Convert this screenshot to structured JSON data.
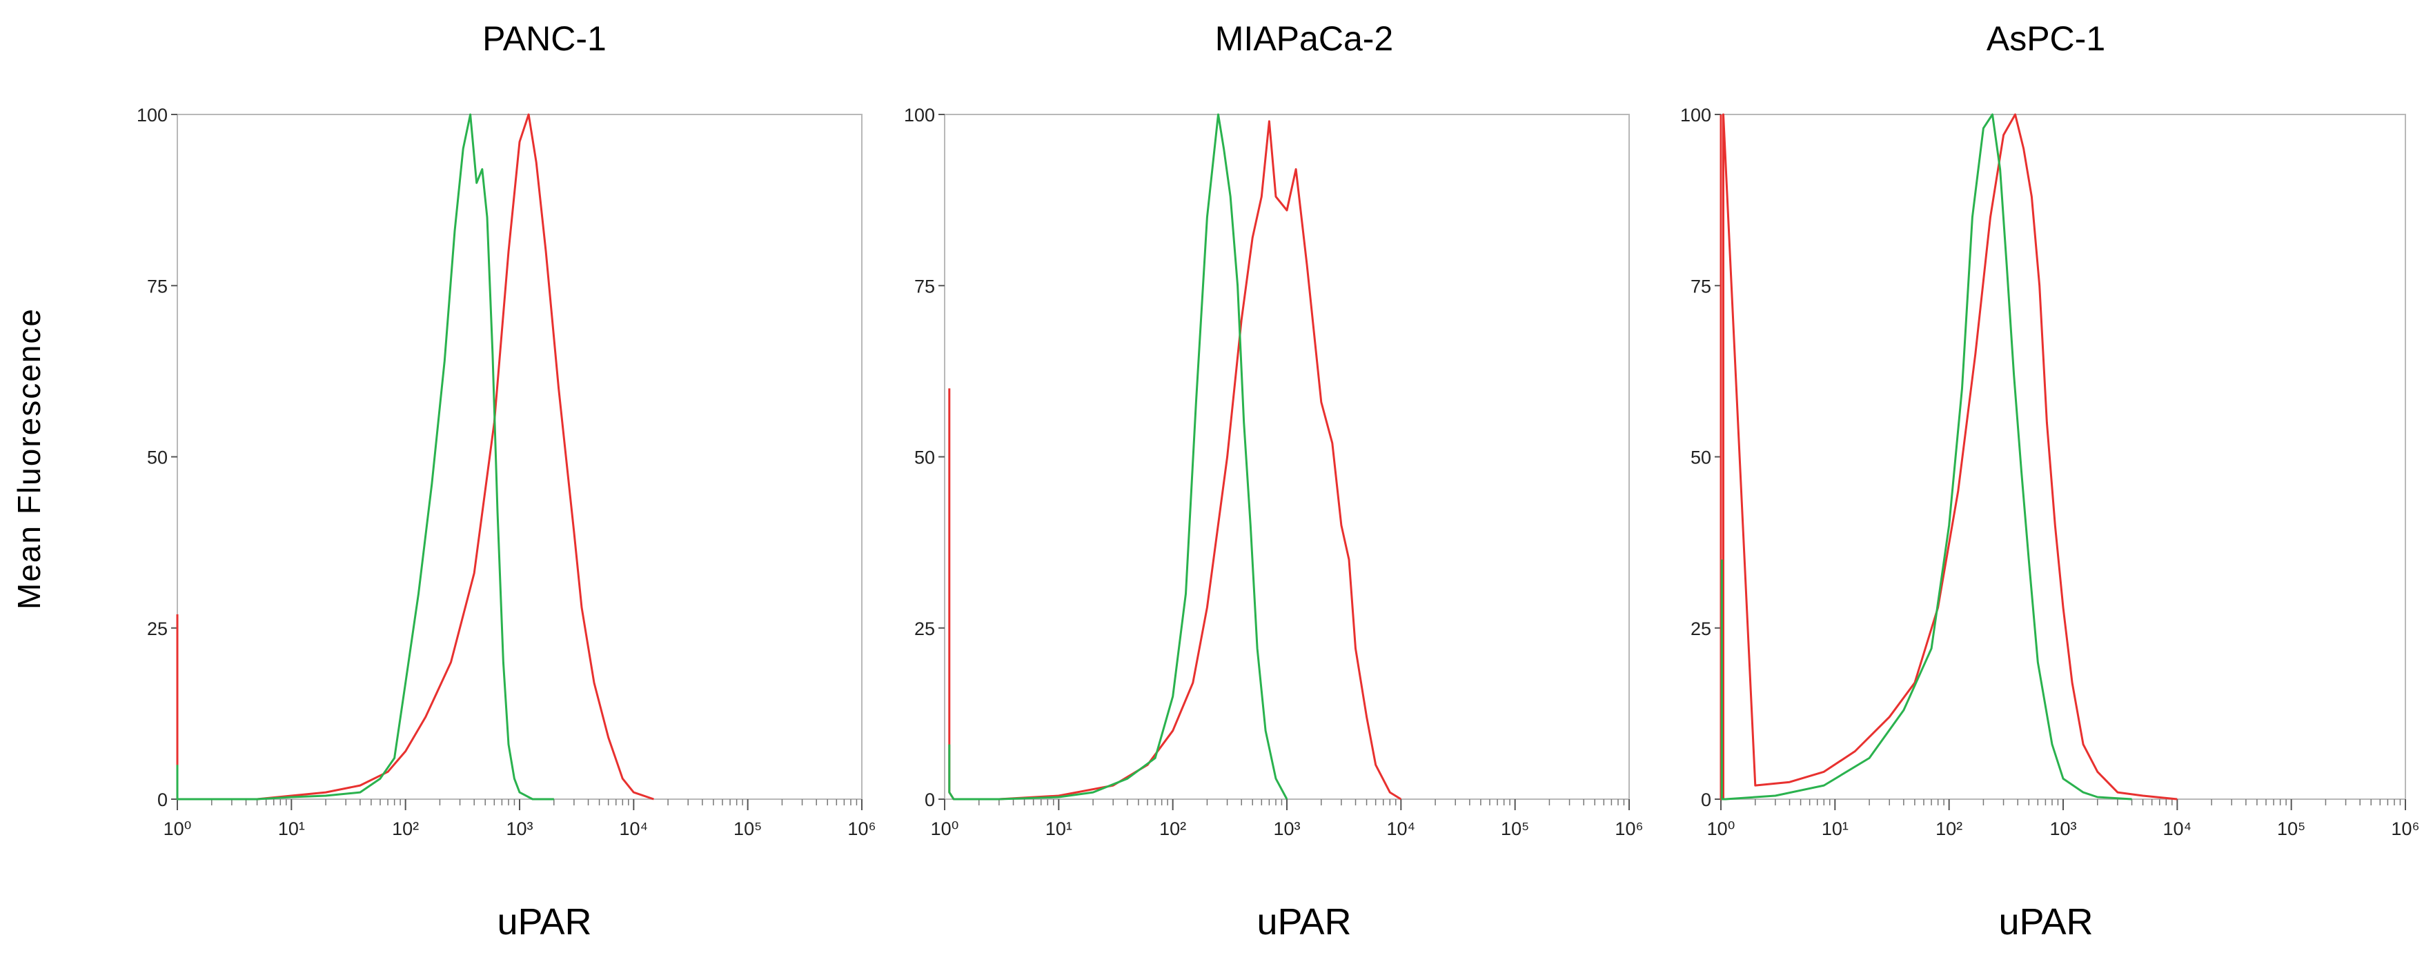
{
  "figure": {
    "ylabel": "Mean Fluorescence"
  },
  "chart_data": [
    {
      "type": "line",
      "title": "PANC-1",
      "xlabel": "uPAR",
      "ylabel": "Mean Fluorescence",
      "x_scale": "log",
      "xlim": [
        1,
        1000000
      ],
      "ylim": [
        0,
        100
      ],
      "yticks": [
        0,
        25,
        50,
        75,
        100
      ],
      "xtick_labels": [
        "10⁰",
        "10¹",
        "10²",
        "10³",
        "10⁴",
        "10⁵",
        "10⁶"
      ],
      "grid": false,
      "series": [
        {
          "color": "#e8312f",
          "x": [
            1,
            1,
            1,
            3,
            5,
            10,
            20,
            40,
            70,
            100,
            150,
            250,
            400,
            600,
            800,
            1000,
            1200,
            1400,
            1700,
            2200,
            3000,
            3500,
            4500,
            6000,
            8000,
            10000,
            15000
          ],
          "y": [
            27,
            2,
            0,
            0,
            0,
            0.5,
            1,
            2,
            4,
            7,
            12,
            20,
            33,
            55,
            80,
            96,
            100,
            93,
            80,
            60,
            39,
            28,
            17,
            9,
            3,
            1,
            0
          ]
        },
        {
          "color": "#2ab24e",
          "x": [
            1,
            1,
            1,
            3,
            5,
            10,
            20,
            40,
            60,
            80,
            100,
            130,
            170,
            220,
            270,
            320,
            370,
            420,
            470,
            520,
            580,
            640,
            720,
            800,
            900,
            1000,
            1300,
            2000
          ],
          "y": [
            5,
            1,
            0,
            0,
            0,
            0.3,
            0.5,
            1,
            3,
            6,
            17,
            30,
            46,
            64,
            83,
            95,
            100,
            90,
            92,
            85,
            65,
            42,
            20,
            8,
            3,
            1,
            0,
            0
          ]
        }
      ]
    },
    {
      "type": "line",
      "title": "MIAPaCa-2",
      "xlabel": "uPAR",
      "ylabel": "Mean Fluorescence",
      "x_scale": "log",
      "xlim": [
        1,
        1000000
      ],
      "ylim": [
        0,
        100
      ],
      "yticks": [
        0,
        25,
        50,
        75,
        100
      ],
      "xtick_labels": [
        "10⁰",
        "10¹",
        "10²",
        "10³",
        "10⁴",
        "10⁵",
        "10⁶"
      ],
      "grid": false,
      "series": [
        {
          "color": "#e8312f",
          "x": [
            1.1,
            1.1,
            1.2,
            3,
            10,
            30,
            60,
            100,
            150,
            200,
            300,
            400,
            500,
            600,
            700,
            800,
            1000,
            1200,
            1500,
            2000,
            2500,
            3000,
            3500,
            4000,
            5000,
            6000,
            8000,
            10000
          ],
          "y": [
            60,
            1,
            0,
            0,
            0.5,
            2,
            5,
            10,
            17,
            28,
            50,
            70,
            82,
            88,
            99,
            88,
            86,
            92,
            78,
            58,
            52,
            40,
            35,
            22,
            12,
            5,
            1,
            0
          ]
        },
        {
          "color": "#2ab24e",
          "x": [
            1.1,
            1.1,
            1.2,
            3,
            10,
            20,
            40,
            70,
            100,
            130,
            160,
            200,
            250,
            280,
            320,
            370,
            420,
            480,
            550,
            650,
            800,
            1000
          ],
          "y": [
            8,
            1,
            0,
            0,
            0.3,
            1,
            3,
            6,
            15,
            30,
            58,
            85,
            100,
            95,
            88,
            75,
            55,
            40,
            22,
            10,
            3,
            0
          ]
        }
      ]
    },
    {
      "type": "line",
      "title": "AsPC-1",
      "xlabel": "uPAR",
      "ylabel": "Mean Fluorescence",
      "x_scale": "log",
      "xlim": [
        1,
        1000000
      ],
      "ylim": [
        0,
        100
      ],
      "yticks": [
        0,
        25,
        50,
        75,
        100
      ],
      "xtick_labels": [
        "10⁰",
        "10¹",
        "10²",
        "10³",
        "10⁴",
        "10⁵",
        "10⁶"
      ],
      "grid": false,
      "series": [
        {
          "color": "#e8312f",
          "x": [
            1,
            1,
            1.05,
            1.05,
            2,
            4,
            8,
            15,
            30,
            50,
            80,
            120,
            170,
            230,
            300,
            380,
            450,
            530,
            620,
            720,
            850,
            1000,
            1200,
            1500,
            2000,
            3000,
            5000,
            10000
          ],
          "y": [
            100,
            0,
            0,
            100,
            2,
            2.5,
            4,
            7,
            12,
            17,
            28,
            45,
            65,
            85,
            97,
            100,
            95,
            88,
            75,
            55,
            40,
            28,
            17,
            8,
            4,
            1,
            0.5,
            0
          ]
        },
        {
          "color": "#2ab24e",
          "x": [
            1.02,
            1.02,
            1.1,
            3,
            8,
            20,
            40,
            70,
            100,
            130,
            160,
            200,
            240,
            280,
            320,
            370,
            430,
            500,
            600,
            800,
            1000,
            1500,
            2000,
            4000
          ],
          "y": [
            35,
            0,
            0,
            0.5,
            2,
            6,
            13,
            22,
            40,
            60,
            85,
            98,
            100,
            92,
            78,
            62,
            48,
            35,
            20,
            8,
            3,
            1,
            0.3,
            0
          ]
        }
      ]
    }
  ]
}
